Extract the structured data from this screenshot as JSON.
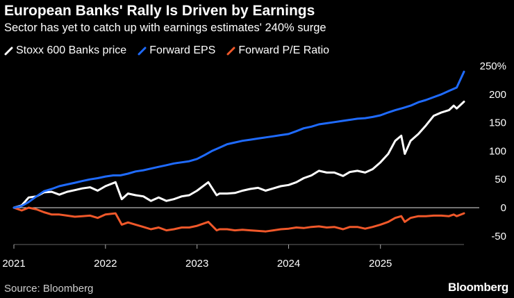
{
  "title": "European Banks' Rally Is Driven by Earnings",
  "subtitle": "Sector has yet to catch up with earnings estimates' 240% surge",
  "source": "Source: Bloomberg",
  "brand": "Bloomberg",
  "chart_data": {
    "type": "line",
    "title": "European Banks' Rally Is Driven by Earnings",
    "subtitle": "Sector has yet to catch up with earnings estimates' 240% surge",
    "x_range": [
      "2021-01-01",
      "2025-11-30"
    ],
    "ylim": [
      -65,
      250
    ],
    "y_ticks": [
      250,
      200,
      150,
      100,
      50,
      0,
      -50
    ],
    "y_tick_labels": [
      "250%",
      "200",
      "150",
      "100",
      "50",
      "0",
      "-50"
    ],
    "x_ticks": [
      "2021",
      "2022",
      "2023",
      "2024",
      "2025"
    ],
    "legend_position": "top-left",
    "zero_line": true,
    "grid": false,
    "series": [
      {
        "name": "Stoxx 600 Banks price",
        "color": "#ffffff",
        "points": [
          [
            "2021-01-01",
            0
          ],
          [
            "2021-02-01",
            4
          ],
          [
            "2021-03-01",
            18
          ],
          [
            "2021-04-01",
            20
          ],
          [
            "2021-05-01",
            27
          ],
          [
            "2021-06-01",
            28
          ],
          [
            "2021-07-01",
            23
          ],
          [
            "2021-08-01",
            28
          ],
          [
            "2021-09-01",
            31
          ],
          [
            "2021-10-01",
            34
          ],
          [
            "2021-11-01",
            36
          ],
          [
            "2021-12-01",
            30
          ],
          [
            "2022-01-01",
            38
          ],
          [
            "2022-02-10",
            45
          ],
          [
            "2022-03-07",
            15
          ],
          [
            "2022-04-01",
            25
          ],
          [
            "2022-05-01",
            22
          ],
          [
            "2022-06-01",
            20
          ],
          [
            "2022-07-01",
            12
          ],
          [
            "2022-08-01",
            18
          ],
          [
            "2022-09-01",
            12
          ],
          [
            "2022-10-01",
            15
          ],
          [
            "2022-11-01",
            20
          ],
          [
            "2022-12-01",
            22
          ],
          [
            "2023-01-01",
            30
          ],
          [
            "2023-02-15",
            45
          ],
          [
            "2023-03-20",
            22
          ],
          [
            "2023-04-01",
            25
          ],
          [
            "2023-05-01",
            25
          ],
          [
            "2023-06-01",
            26
          ],
          [
            "2023-07-01",
            30
          ],
          [
            "2023-08-01",
            33
          ],
          [
            "2023-09-01",
            35
          ],
          [
            "2023-10-01",
            30
          ],
          [
            "2023-11-01",
            34
          ],
          [
            "2023-12-01",
            38
          ],
          [
            "2024-01-01",
            40
          ],
          [
            "2024-02-01",
            45
          ],
          [
            "2024-03-01",
            52
          ],
          [
            "2024-04-01",
            57
          ],
          [
            "2024-05-01",
            65
          ],
          [
            "2024-06-01",
            62
          ],
          [
            "2024-07-01",
            62
          ],
          [
            "2024-08-05",
            56
          ],
          [
            "2024-09-01",
            63
          ],
          [
            "2024-10-01",
            65
          ],
          [
            "2024-11-01",
            62
          ],
          [
            "2024-12-01",
            68
          ],
          [
            "2025-01-01",
            80
          ],
          [
            "2025-02-01",
            95
          ],
          [
            "2025-03-01",
            118
          ],
          [
            "2025-03-25",
            127
          ],
          [
            "2025-04-08",
            95
          ],
          [
            "2025-05-01",
            118
          ],
          [
            "2025-06-01",
            130
          ],
          [
            "2025-07-01",
            145
          ],
          [
            "2025-08-01",
            162
          ],
          [
            "2025-09-01",
            168
          ],
          [
            "2025-10-01",
            172
          ],
          [
            "2025-10-20",
            180
          ],
          [
            "2025-11-01",
            175
          ],
          [
            "2025-11-30",
            187
          ]
        ]
      },
      {
        "name": "Forward EPS",
        "color": "#1f6bff",
        "points": [
          [
            "2021-01-01",
            0
          ],
          [
            "2021-02-01",
            3
          ],
          [
            "2021-03-01",
            10
          ],
          [
            "2021-04-01",
            20
          ],
          [
            "2021-05-01",
            29
          ],
          [
            "2021-06-01",
            33
          ],
          [
            "2021-07-01",
            38
          ],
          [
            "2021-08-01",
            41
          ],
          [
            "2021-09-01",
            44
          ],
          [
            "2021-10-01",
            47
          ],
          [
            "2021-11-01",
            50
          ],
          [
            "2021-12-01",
            52
          ],
          [
            "2022-01-01",
            55
          ],
          [
            "2022-02-01",
            57
          ],
          [
            "2022-03-01",
            57
          ],
          [
            "2022-04-01",
            60
          ],
          [
            "2022-05-01",
            64
          ],
          [
            "2022-06-01",
            66
          ],
          [
            "2022-07-01",
            69
          ],
          [
            "2022-08-01",
            72
          ],
          [
            "2022-09-01",
            75
          ],
          [
            "2022-10-01",
            78
          ],
          [
            "2022-11-01",
            80
          ],
          [
            "2022-12-01",
            82
          ],
          [
            "2023-01-01",
            86
          ],
          [
            "2023-02-01",
            93
          ],
          [
            "2023-03-01",
            100
          ],
          [
            "2023-04-01",
            106
          ],
          [
            "2023-05-01",
            112
          ],
          [
            "2023-06-01",
            115
          ],
          [
            "2023-07-01",
            118
          ],
          [
            "2023-08-01",
            120
          ],
          [
            "2023-09-01",
            122
          ],
          [
            "2023-10-01",
            124
          ],
          [
            "2023-11-01",
            126
          ],
          [
            "2023-12-01",
            128
          ],
          [
            "2024-01-01",
            130
          ],
          [
            "2024-02-01",
            135
          ],
          [
            "2024-03-01",
            140
          ],
          [
            "2024-04-01",
            143
          ],
          [
            "2024-05-01",
            147
          ],
          [
            "2024-06-01",
            149
          ],
          [
            "2024-07-01",
            151
          ],
          [
            "2024-08-01",
            153
          ],
          [
            "2024-09-01",
            155
          ],
          [
            "2024-10-01",
            157
          ],
          [
            "2024-11-01",
            158
          ],
          [
            "2024-12-01",
            160
          ],
          [
            "2025-01-01",
            163
          ],
          [
            "2025-02-01",
            168
          ],
          [
            "2025-03-01",
            172
          ],
          [
            "2025-04-01",
            176
          ],
          [
            "2025-05-01",
            180
          ],
          [
            "2025-06-01",
            186
          ],
          [
            "2025-07-01",
            190
          ],
          [
            "2025-08-01",
            195
          ],
          [
            "2025-09-01",
            200
          ],
          [
            "2025-10-01",
            206
          ],
          [
            "2025-11-01",
            212
          ],
          [
            "2025-11-30",
            240
          ]
        ]
      },
      {
        "name": "Forward P/E Ratio",
        "color": "#f0582a",
        "points": [
          [
            "2021-01-01",
            0
          ],
          [
            "2021-02-01",
            -5
          ],
          [
            "2021-03-01",
            0
          ],
          [
            "2021-04-01",
            -3
          ],
          [
            "2021-05-01",
            -8
          ],
          [
            "2021-06-01",
            -12
          ],
          [
            "2021-07-01",
            -12
          ],
          [
            "2021-08-01",
            -14
          ],
          [
            "2021-09-01",
            -16
          ],
          [
            "2021-10-01",
            -15
          ],
          [
            "2021-11-01",
            -14
          ],
          [
            "2021-12-01",
            -18
          ],
          [
            "2022-01-01",
            -12
          ],
          [
            "2022-02-10",
            -10
          ],
          [
            "2022-03-07",
            -30
          ],
          [
            "2022-04-01",
            -26
          ],
          [
            "2022-05-01",
            -30
          ],
          [
            "2022-06-01",
            -34
          ],
          [
            "2022-07-01",
            -38
          ],
          [
            "2022-08-01",
            -35
          ],
          [
            "2022-09-01",
            -40
          ],
          [
            "2022-10-01",
            -38
          ],
          [
            "2022-11-01",
            -35
          ],
          [
            "2022-12-01",
            -35
          ],
          [
            "2023-01-01",
            -32
          ],
          [
            "2023-02-15",
            -25
          ],
          [
            "2023-03-20",
            -40
          ],
          [
            "2023-04-01",
            -38
          ],
          [
            "2023-05-01",
            -38
          ],
          [
            "2023-06-01",
            -40
          ],
          [
            "2023-07-01",
            -39
          ],
          [
            "2023-08-01",
            -40
          ],
          [
            "2023-09-01",
            -41
          ],
          [
            "2023-10-01",
            -42
          ],
          [
            "2023-11-01",
            -40
          ],
          [
            "2023-12-01",
            -38
          ],
          [
            "2024-01-01",
            -37
          ],
          [
            "2024-02-01",
            -35
          ],
          [
            "2024-03-01",
            -36
          ],
          [
            "2024-04-01",
            -34
          ],
          [
            "2024-05-01",
            -33
          ],
          [
            "2024-06-01",
            -35
          ],
          [
            "2024-07-01",
            -34
          ],
          [
            "2024-08-05",
            -38
          ],
          [
            "2024-09-01",
            -34
          ],
          [
            "2024-10-01",
            -34
          ],
          [
            "2024-11-01",
            -37
          ],
          [
            "2024-12-01",
            -34
          ],
          [
            "2025-01-01",
            -30
          ],
          [
            "2025-02-01",
            -25
          ],
          [
            "2025-03-01",
            -18
          ],
          [
            "2025-03-25",
            -15
          ],
          [
            "2025-04-08",
            -25
          ],
          [
            "2025-05-01",
            -18
          ],
          [
            "2025-06-01",
            -15
          ],
          [
            "2025-07-01",
            -15
          ],
          [
            "2025-08-01",
            -14
          ],
          [
            "2025-09-01",
            -14
          ],
          [
            "2025-10-01",
            -15
          ],
          [
            "2025-10-20",
            -12
          ],
          [
            "2025-11-01",
            -15
          ],
          [
            "2025-11-30",
            -10
          ]
        ]
      }
    ]
  }
}
